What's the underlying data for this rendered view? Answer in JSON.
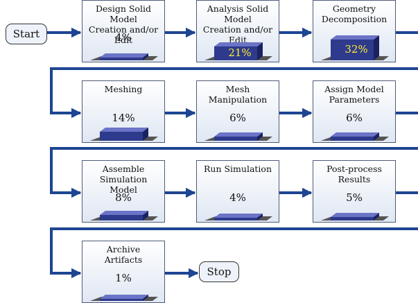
{
  "colors": {
    "arrow": "#1d4592",
    "bar_front": "#2e3a8c",
    "bar_top": "#6b74c6",
    "bar_side": "#1a2260",
    "shadow": "#555555"
  },
  "terminals": {
    "start": "Start",
    "stop": "Stop"
  },
  "steps": [
    {
      "label": "Design Solid Model\nCreation and/or Edit",
      "percent": "4%",
      "value": 4
    },
    {
      "label": "Analysis Solid Model\nCreation and/or Edit",
      "percent": "21%",
      "value": 21
    },
    {
      "label": "Geometry\nDecomposition",
      "percent": "32%",
      "value": 32
    },
    {
      "label": "Meshing",
      "percent": "14%",
      "value": 14
    },
    {
      "label": "Mesh Manipulation",
      "percent": "6%",
      "value": 6
    },
    {
      "label": "Assign Model\nParameters",
      "percent": "6%",
      "value": 6
    },
    {
      "label": "Assemble Simulation\nModel",
      "percent": "8%",
      "value": 8
    },
    {
      "label": "Run Simulation",
      "percent": "4%",
      "value": 4
    },
    {
      "label": "Post-process\nResults",
      "percent": "5%",
      "value": 5
    },
    {
      "label": "Archive\nArtifacts",
      "percent": "1%",
      "value": 1
    }
  ]
}
